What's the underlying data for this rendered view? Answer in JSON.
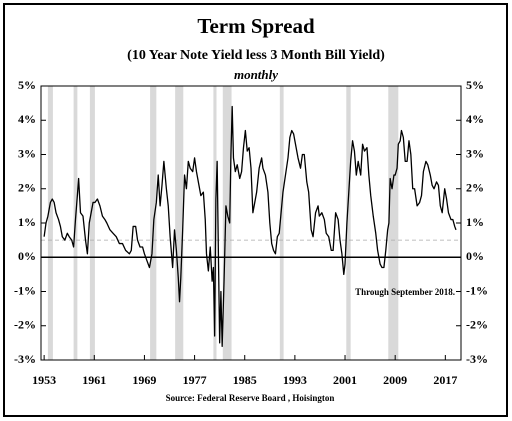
{
  "chart_data": {
    "type": "line",
    "title": "Term Spread",
    "subtitle": "(10 Year Note Yield less 3 Month Bill Yield)",
    "frequency_note": "monthly",
    "annotation": "Through September 2018.",
    "source": "Source: Federal Reserve Board , Hoisington",
    "x": [
      1953.0,
      1953.3,
      1953.6,
      1954.0,
      1954.3,
      1954.6,
      1954.9,
      1955.3,
      1955.6,
      1955.9,
      1956.3,
      1956.7,
      1957.0,
      1957.4,
      1957.7,
      1958.0,
      1958.3,
      1958.5,
      1958.8,
      1959.2,
      1959.6,
      1959.9,
      1960.2,
      1960.5,
      1960.8,
      1961.1,
      1961.5,
      1961.9,
      1962.3,
      1962.7,
      1963.0,
      1963.5,
      1964.0,
      1964.5,
      1965.0,
      1965.5,
      1966.0,
      1966.6,
      1966.9,
      1967.2,
      1967.6,
      1967.9,
      1968.3,
      1968.7,
      1969.0,
      1969.4,
      1969.8,
      1970.2,
      1970.5,
      1970.9,
      1971.2,
      1971.5,
      1971.8,
      1972.1,
      1972.5,
      1972.8,
      1973.1,
      1973.5,
      1973.8,
      1974.1,
      1974.4,
      1974.6,
      1974.8,
      1975.1,
      1975.4,
      1975.7,
      1976.0,
      1976.3,
      1976.7,
      1977.0,
      1977.3,
      1977.7,
      1978.0,
      1978.4,
      1978.7,
      1978.9,
      1979.2,
      1979.5,
      1979.8,
      1980.0,
      1980.2,
      1980.4,
      1980.6,
      1980.8,
      1981.0,
      1981.2,
      1981.4,
      1981.7,
      1982.0,
      1982.3,
      1982.6,
      1982.8,
      1983.0,
      1983.2,
      1983.5,
      1983.8,
      1984.2,
      1984.5,
      1984.8,
      1985.1,
      1985.4,
      1985.7,
      1986.0,
      1986.3,
      1986.6,
      1986.9,
      1987.3,
      1987.7,
      1987.9,
      1988.3,
      1988.7,
      1989.0,
      1989.3,
      1989.6,
      1989.9,
      1990.2,
      1990.5,
      1990.8,
      1991.1,
      1991.5,
      1991.9,
      1992.2,
      1992.5,
      1992.8,
      1993.1,
      1993.5,
      1993.9,
      1994.2,
      1994.5,
      1994.9,
      1995.2,
      1995.6,
      1995.9,
      1996.3,
      1996.7,
      1996.9,
      1997.3,
      1997.7,
      1998.0,
      1998.4,
      1998.8,
      1999.1,
      1999.5,
      1999.9,
      2000.2,
      2000.5,
      2000.8,
      2001.0,
      2001.3,
      2001.6,
      2001.9,
      2002.2,
      2002.5,
      2002.8,
      2003.1,
      2003.5,
      2003.8,
      2004.1,
      2004.5,
      2004.8,
      2005.1,
      2005.5,
      2005.9,
      2006.2,
      2006.6,
      2006.9,
      2007.2,
      2007.5,
      2007.8,
      2008.0,
      2008.2,
      2008.5,
      2008.8,
      2009.0,
      2009.3,
      2009.5,
      2009.8,
      2010.0,
      2010.3,
      2010.6,
      2010.9,
      2011.2,
      2011.5,
      2011.8,
      2012.1,
      2012.5,
      2012.9,
      2013.2,
      2013.5,
      2013.9,
      2014.2,
      2014.6,
      2014.9,
      2015.2,
      2015.6,
      2015.9,
      2016.2,
      2016.5,
      2016.9,
      2017.2,
      2017.5,
      2017.9,
      2018.2,
      2018.5,
      2018.7
    ],
    "series": [
      {
        "name": "Term Spread",
        "color": "#000000",
        "values": [
          0.6,
          1.0,
          1.2,
          1.6,
          1.7,
          1.6,
          1.3,
          1.1,
          0.9,
          0.6,
          0.5,
          0.7,
          0.6,
          0.5,
          0.3,
          1.1,
          1.8,
          2.3,
          1.3,
          1.2,
          0.5,
          0.1,
          1.0,
          1.3,
          1.6,
          1.6,
          1.7,
          1.5,
          1.2,
          1.1,
          1.0,
          0.8,
          0.7,
          0.6,
          0.4,
          0.4,
          0.2,
          0.1,
          0.2,
          0.9,
          0.9,
          0.5,
          0.3,
          0.3,
          0.1,
          -0.1,
          -0.3,
          0.1,
          1.1,
          1.6,
          2.4,
          1.5,
          2.1,
          2.8,
          2.0,
          1.5,
          0.6,
          -0.3,
          0.8,
          0.2,
          -0.6,
          -1.3,
          -0.6,
          0.8,
          2.4,
          2.0,
          2.8,
          2.6,
          2.5,
          2.9,
          2.5,
          2.1,
          1.8,
          1.9,
          1.1,
          0.1,
          -0.4,
          0.3,
          -0.7,
          -0.3,
          -2.3,
          1.7,
          2.8,
          0.1,
          -2.5,
          -1.0,
          -2.6,
          -0.7,
          1.5,
          1.2,
          1.0,
          3.0,
          4.4,
          2.9,
          2.5,
          2.7,
          2.3,
          2.5,
          3.2,
          3.7,
          3.1,
          3.2,
          2.6,
          1.3,
          1.6,
          1.9,
          2.6,
          2.9,
          2.6,
          2.4,
          1.9,
          1.0,
          0.4,
          0.2,
          0.1,
          0.6,
          0.7,
          1.3,
          1.9,
          2.4,
          2.9,
          3.5,
          3.7,
          3.6,
          3.3,
          2.9,
          2.6,
          3.0,
          3.0,
          2.2,
          1.9,
          0.8,
          0.6,
          1.3,
          1.5,
          1.2,
          1.3,
          1.1,
          0.7,
          0.6,
          0.2,
          0.2,
          1.3,
          1.1,
          0.5,
          0.1,
          -0.5,
          -0.2,
          1.0,
          1.9,
          2.8,
          3.4,
          3.1,
          2.4,
          2.8,
          2.4,
          3.3,
          3.1,
          3.2,
          2.4,
          1.8,
          1.2,
          0.7,
          0.2,
          -0.2,
          -0.3,
          -0.3,
          0.2,
          0.8,
          1.0,
          2.3,
          2.0,
          2.4,
          2.4,
          2.6,
          3.3,
          3.4,
          3.7,
          3.5,
          2.8,
          2.8,
          3.4,
          3.0,
          2.0,
          2.0,
          1.5,
          1.6,
          1.8,
          2.5,
          2.8,
          2.7,
          2.4,
          2.1,
          2.0,
          2.2,
          2.1,
          1.5,
          1.3,
          2.0,
          1.7,
          1.3,
          1.1,
          1.1,
          0.9,
          0.8
        ]
      }
    ],
    "shaded_periods": [
      [
        1953.6,
        1954.4
      ],
      [
        1957.7,
        1958.3
      ],
      [
        1960.3,
        1961.1
      ],
      [
        1969.9,
        1970.9
      ],
      [
        1973.9,
        1975.2
      ],
      [
        1980.0,
        1980.5
      ],
      [
        1981.5,
        1982.9
      ],
      [
        1990.6,
        1991.2
      ],
      [
        2001.2,
        2001.9
      ],
      [
        2007.9,
        2009.5
      ]
    ],
    "shade_color": "#d9d9d9",
    "reference_line": 0.5,
    "xlim": [
      1952.5,
      2019.5
    ],
    "xticks": [
      1953,
      1961,
      1969,
      1977,
      1985,
      1993,
      2001,
      2009,
      2017
    ],
    "ylim": [
      -3,
      5
    ],
    "yticks": [
      {
        "value": 5,
        "label": "5%"
      },
      {
        "value": 4,
        "label": "4%"
      },
      {
        "value": 3,
        "label": "3%"
      },
      {
        "value": 2,
        "label": "2%"
      },
      {
        "value": 1,
        "label": "1%"
      },
      {
        "value": 0,
        "label": "0%"
      },
      {
        "value": -1,
        "label": "-1%"
      },
      {
        "value": -2,
        "label": "-2%"
      },
      {
        "value": -3,
        "label": "-3%"
      }
    ],
    "y2lim": [
      -3,
      5
    ],
    "y2ticks": [
      {
        "value": 5,
        "label": "5%"
      },
      {
        "value": 4,
        "label": "4%"
      },
      {
        "value": 3,
        "label": "3%"
      },
      {
        "value": 2,
        "label": "2%"
      },
      {
        "value": 1,
        "label": "1%"
      },
      {
        "value": 0,
        "label": "0%"
      },
      {
        "value": -1,
        "label": "-1%"
      },
      {
        "value": -2,
        "label": "-2%"
      },
      {
        "value": -3,
        "label": "-3%"
      }
    ]
  }
}
